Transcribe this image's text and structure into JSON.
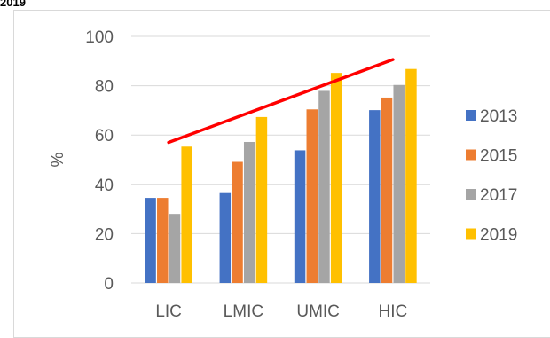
{
  "header_fragment": "2019",
  "chart_data": {
    "type": "bar",
    "title": "",
    "xlabel": "",
    "ylabel": "%",
    "ylim": [
      0,
      100
    ],
    "yticks": [
      0,
      20,
      40,
      60,
      80,
      100
    ],
    "categories": [
      "LIC",
      "LMIC",
      "UMIC",
      "HIC"
    ],
    "series": [
      {
        "name": "2013",
        "color": "#4472c4",
        "values": [
          34.5,
          36.8,
          53.8,
          70.1
        ]
      },
      {
        "name": "2015",
        "color": "#ed7d31",
        "values": [
          34.5,
          49.1,
          70.4,
          75.2
        ]
      },
      {
        "name": "2017",
        "color": "#a5a5a5",
        "values": [
          28.0,
          57.2,
          77.9,
          80.3
        ]
      },
      {
        "name": "2019",
        "color": "#ffc000",
        "values": [
          55.3,
          67.3,
          85.2,
          86.8
        ]
      }
    ],
    "trendline": {
      "color": "#ff0000",
      "from": {
        "category": "LIC",
        "y": 57
      },
      "to": {
        "category": "HIC",
        "y": 90.6
      }
    },
    "grid": true,
    "legend": "right"
  }
}
